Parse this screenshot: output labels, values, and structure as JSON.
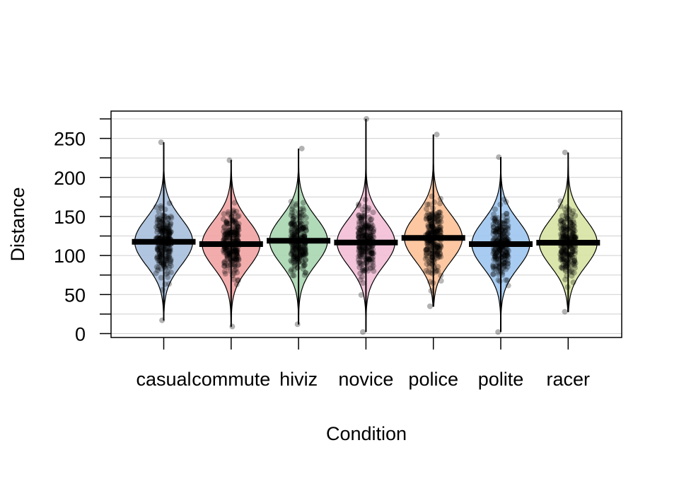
{
  "chart_data": {
    "type": "pirateplot",
    "title": "",
    "xlabel": "Condition",
    "ylabel": "Distance",
    "ylim": [
      -5,
      285
    ],
    "yticks": [
      0,
      50,
      100,
      150,
      200,
      250
    ],
    "minor_step": 25,
    "grid": true,
    "categories": [
      "casual",
      "commute",
      "hiviz",
      "novice",
      "police",
      "polite",
      "racer"
    ],
    "means": [
      117.6,
      114.6,
      118.9,
      116.7,
      122.5,
      114.6,
      116.4
    ],
    "mins": [
      17,
      9,
      12,
      2,
      35,
      2,
      28
    ],
    "maxs": [
      245,
      222,
      237,
      275,
      255,
      226,
      232
    ],
    "colors": [
      "#a7bfdd",
      "#f2a3a3",
      "#a9d6b0",
      "#f2bed6",
      "#fcc197",
      "#9ec6ef",
      "#d6e3a2"
    ]
  }
}
